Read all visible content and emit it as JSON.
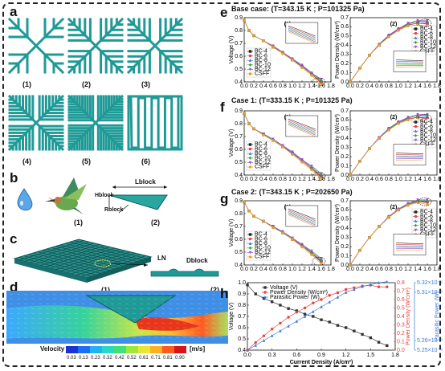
{
  "panels": {
    "a": {
      "label": "a",
      "sub": [
        "(1)",
        "(2)",
        "(3)",
        "(4)",
        "(5)",
        "(6)"
      ]
    },
    "b": {
      "label": "b",
      "sub": [
        "(1)",
        "(2)"
      ],
      "L_block": "Lblock",
      "H_block": "Hblock",
      "R_block": "Rblock"
    },
    "c": {
      "label": "c",
      "L_N": "LN",
      "D_block": "Dblock"
    },
    "d": {
      "label": "d",
      "sub": [
        "(1)",
        "(2)"
      ],
      "velocity_label": "Velocity",
      "unit": "[m/s]",
      "ticks": [
        "0.03",
        "0.13",
        "0.23",
        "0.32",
        "0.42",
        "0.52",
        "0.61",
        "0.71",
        "0.81",
        "0.90"
      ]
    },
    "e": {
      "label": "e",
      "title": "Base case: (T=343.15 K ; P=101325 Pa)"
    },
    "f": {
      "label": "f",
      "title": "Case 1: (T=333.15 K ; P=101325 Pa)"
    },
    "g": {
      "label": "g",
      "title": "Case 2: (T=343.15 K ; P=202650 Pa)"
    },
    "h": {
      "label": "h",
      "xlabel": "Current Density (A/cm²)"
    }
  },
  "colors": {
    "teal": "#1f9a97",
    "dark": "#111111"
  },
  "chart_data": [
    {
      "type": "line",
      "panel": "e1",
      "sub": "(1)",
      "ylabel": "Voltage (V)",
      "xlabel": "",
      "xlim": [
        0.0,
        1.8
      ],
      "ylim": [
        0.4,
        0.9
      ],
      "xticks": [
        "0.0",
        "0.2",
        "0.4",
        "0.6",
        "0.8",
        "1.0",
        "1.2",
        "1.4",
        "1.6",
        "1.8"
      ],
      "yticks": [
        "0.4",
        "0.5",
        "0.6",
        "0.7",
        "0.8",
        "0.9"
      ],
      "x": [
        0.0,
        0.1,
        0.2,
        0.4,
        0.6,
        0.8,
        1.0,
        1.2,
        1.4,
        1.6
      ],
      "series": [
        {
          "name": "BC-4",
          "values": [
            0.88,
            0.8,
            0.76,
            0.72,
            0.67,
            0.63,
            0.57,
            0.52,
            0.46,
            0.4
          ]
        },
        {
          "name": "BC-6",
          "values": [
            0.88,
            0.8,
            0.76,
            0.72,
            0.67,
            0.63,
            0.57,
            0.52,
            0.46,
            0.39
          ]
        },
        {
          "name": "BC-8",
          "values": [
            0.88,
            0.8,
            0.76,
            0.72,
            0.68,
            0.63,
            0.58,
            0.52,
            0.47,
            0.41
          ]
        },
        {
          "name": "BC-10",
          "values": [
            0.88,
            0.8,
            0.76,
            0.72,
            0.68,
            0.63,
            0.58,
            0.53,
            0.47,
            0.41
          ]
        },
        {
          "name": "BC-12",
          "values": [
            0.88,
            0.8,
            0.76,
            0.72,
            0.68,
            0.63,
            0.58,
            0.53,
            0.47,
            0.42
          ]
        },
        {
          "name": "CSFF",
          "values": [
            0.88,
            0.8,
            0.76,
            0.72,
            0.67,
            0.62,
            0.57,
            0.51,
            0.45,
            0.38
          ]
        }
      ]
    },
    {
      "type": "line",
      "panel": "e2",
      "sub": "(2)",
      "ylabel": "Power Density (W/cm²)",
      "xlim": [
        0.0,
        1.8
      ],
      "ylim": [
        0.0,
        0.7
      ],
      "xticks": [
        "0.0",
        "0.2",
        "0.4",
        "0.6",
        "0.8",
        "1.0",
        "1.2",
        "1.4",
        "1.6",
        "1.8"
      ],
      "yticks": [
        "0.0",
        "0.1",
        "0.2",
        "0.3",
        "0.4",
        "0.5",
        "0.6",
        "0.7"
      ],
      "x": [
        0.0,
        0.2,
        0.4,
        0.6,
        0.8,
        1.0,
        1.2,
        1.4,
        1.6
      ],
      "series": [
        {
          "name": "BC-4",
          "values": [
            0.0,
            0.15,
            0.29,
            0.4,
            0.5,
            0.57,
            0.62,
            0.64,
            0.64
          ]
        },
        {
          "name": "BC-6",
          "values": [
            0.0,
            0.15,
            0.29,
            0.4,
            0.5,
            0.57,
            0.62,
            0.64,
            0.63
          ]
        },
        {
          "name": "BC-8",
          "values": [
            0.0,
            0.15,
            0.29,
            0.41,
            0.5,
            0.58,
            0.63,
            0.66,
            0.66
          ]
        },
        {
          "name": "BC-10",
          "values": [
            0.0,
            0.15,
            0.29,
            0.41,
            0.51,
            0.58,
            0.63,
            0.66,
            0.66
          ]
        },
        {
          "name": "BC-12",
          "values": [
            0.0,
            0.15,
            0.29,
            0.41,
            0.51,
            0.58,
            0.64,
            0.67,
            0.67
          ]
        },
        {
          "name": "CSFF",
          "values": [
            0.0,
            0.15,
            0.29,
            0.4,
            0.49,
            0.56,
            0.61,
            0.62,
            0.61
          ]
        }
      ]
    },
    {
      "type": "line",
      "panel": "f1",
      "sub": "(1)",
      "ylabel": "Voltage (V)",
      "xlim": [
        0.0,
        1.8
      ],
      "ylim": [
        0.4,
        0.9
      ],
      "xticks": [
        "0.0",
        "0.2",
        "0.4",
        "0.6",
        "0.8",
        "1.0",
        "1.2",
        "1.4",
        "1.6",
        "1.8"
      ],
      "yticks": [
        "0.4",
        "0.5",
        "0.6",
        "0.7",
        "0.8",
        "0.9"
      ],
      "x": [
        0.0,
        0.1,
        0.2,
        0.4,
        0.6,
        0.8,
        1.0,
        1.2,
        1.4,
        1.6
      ],
      "series": [
        {
          "name": "BC-4",
          "values": [
            0.88,
            0.8,
            0.76,
            0.72,
            0.67,
            0.62,
            0.57,
            0.51,
            0.45,
            0.39
          ]
        },
        {
          "name": "BC-6",
          "values": [
            0.88,
            0.8,
            0.76,
            0.72,
            0.67,
            0.62,
            0.57,
            0.51,
            0.45,
            0.38
          ]
        },
        {
          "name": "BC-8",
          "values": [
            0.88,
            0.8,
            0.76,
            0.72,
            0.67,
            0.63,
            0.57,
            0.52,
            0.46,
            0.4
          ]
        },
        {
          "name": "BC-10",
          "values": [
            0.88,
            0.8,
            0.76,
            0.72,
            0.67,
            0.63,
            0.58,
            0.52,
            0.46,
            0.4
          ]
        },
        {
          "name": "BC-12",
          "values": [
            0.88,
            0.8,
            0.76,
            0.72,
            0.68,
            0.63,
            0.58,
            0.52,
            0.47,
            0.41
          ]
        },
        {
          "name": "CSFF",
          "values": [
            0.88,
            0.8,
            0.76,
            0.71,
            0.67,
            0.62,
            0.56,
            0.5,
            0.44,
            0.37
          ]
        }
      ]
    },
    {
      "type": "line",
      "panel": "f2",
      "sub": "(2)",
      "ylabel": "Power Density (W/cm²)",
      "xlim": [
        0.0,
        1.8
      ],
      "ylim": [
        0.0,
        0.7
      ],
      "xticks": [
        "0.0",
        "0.2",
        "0.4",
        "0.6",
        "0.8",
        "1.0",
        "1.2",
        "1.4",
        "1.6",
        "1.8"
      ],
      "yticks": [
        "0.0",
        "0.1",
        "0.2",
        "0.3",
        "0.4",
        "0.5",
        "0.6",
        "0.7"
      ],
      "x": [
        0.0,
        0.2,
        0.4,
        0.6,
        0.8,
        1.0,
        1.2,
        1.4,
        1.6
      ],
      "series": [
        {
          "name": "BC-4",
          "values": [
            0.0,
            0.15,
            0.29,
            0.4,
            0.5,
            0.57,
            0.61,
            0.63,
            0.62
          ]
        },
        {
          "name": "BC-6",
          "values": [
            0.0,
            0.15,
            0.29,
            0.4,
            0.5,
            0.57,
            0.61,
            0.63,
            0.61
          ]
        },
        {
          "name": "BC-8",
          "values": [
            0.0,
            0.15,
            0.29,
            0.4,
            0.5,
            0.57,
            0.62,
            0.65,
            0.64
          ]
        },
        {
          "name": "BC-10",
          "values": [
            0.0,
            0.15,
            0.29,
            0.4,
            0.5,
            0.58,
            0.62,
            0.65,
            0.65
          ]
        },
        {
          "name": "BC-12",
          "values": [
            0.0,
            0.15,
            0.29,
            0.41,
            0.51,
            0.58,
            0.63,
            0.66,
            0.66
          ]
        },
        {
          "name": "CSFF",
          "values": [
            0.0,
            0.15,
            0.29,
            0.4,
            0.49,
            0.56,
            0.6,
            0.61,
            0.59
          ]
        }
      ]
    },
    {
      "type": "line",
      "panel": "g1",
      "sub": "(1)",
      "ylabel": "Voltage (V)",
      "xlim": [
        0.0,
        1.8
      ],
      "ylim": [
        0.4,
        0.9
      ],
      "xticks": [
        "0.0",
        "0.2",
        "0.4",
        "0.6",
        "0.8",
        "1.0",
        "1.2",
        "1.4",
        "1.6",
        "1.8"
      ],
      "yticks": [
        "0.4",
        "0.5",
        "0.6",
        "0.7",
        "0.8",
        "0.9"
      ],
      "x": [
        0.0,
        0.1,
        0.2,
        0.4,
        0.6,
        0.8,
        1.0,
        1.2,
        1.4,
        1.6
      ],
      "series": [
        {
          "name": "BC-4",
          "values": [
            0.89,
            0.82,
            0.78,
            0.74,
            0.7,
            0.65,
            0.6,
            0.55,
            0.49,
            0.43
          ]
        },
        {
          "name": "BC-6",
          "values": [
            0.89,
            0.82,
            0.78,
            0.74,
            0.7,
            0.65,
            0.6,
            0.55,
            0.49,
            0.42
          ]
        },
        {
          "name": "BC-8",
          "values": [
            0.89,
            0.82,
            0.78,
            0.74,
            0.7,
            0.65,
            0.61,
            0.55,
            0.5,
            0.44
          ]
        },
        {
          "name": "BC-10",
          "values": [
            0.89,
            0.82,
            0.78,
            0.74,
            0.7,
            0.66,
            0.61,
            0.56,
            0.5,
            0.44
          ]
        },
        {
          "name": "BC-12",
          "values": [
            0.89,
            0.82,
            0.78,
            0.74,
            0.7,
            0.66,
            0.61,
            0.56,
            0.51,
            0.45
          ]
        },
        {
          "name": "CSFF",
          "values": [
            0.89,
            0.82,
            0.78,
            0.74,
            0.69,
            0.65,
            0.6,
            0.54,
            0.48,
            0.41
          ]
        }
      ]
    },
    {
      "type": "line",
      "panel": "g2",
      "sub": "(2)",
      "ylabel": "Power Density (W/cm²)",
      "xlim": [
        0.0,
        1.8
      ],
      "ylim": [
        0.0,
        0.7
      ],
      "xticks": [
        "0.0",
        "0.2",
        "0.4",
        "0.6",
        "0.8",
        "1.0",
        "1.2",
        "1.4",
        "1.6",
        "1.8"
      ],
      "yticks": [
        "0.0",
        "0.1",
        "0.2",
        "0.3",
        "0.4",
        "0.5",
        "0.6",
        "0.7"
      ],
      "x": [
        0.0,
        0.2,
        0.4,
        0.6,
        0.8,
        1.0,
        1.2,
        1.4,
        1.6
      ],
      "series": [
        {
          "name": "BC-4",
          "values": [
            0.0,
            0.16,
            0.3,
            0.42,
            0.52,
            0.6,
            0.66,
            0.69,
            0.69
          ]
        },
        {
          "name": "BC-6",
          "values": [
            0.0,
            0.16,
            0.3,
            0.42,
            0.52,
            0.6,
            0.66,
            0.69,
            0.68
          ]
        },
        {
          "name": "BC-8",
          "values": [
            0.0,
            0.16,
            0.3,
            0.42,
            0.52,
            0.61,
            0.66,
            0.7,
            0.7
          ]
        },
        {
          "name": "BC-10",
          "values": [
            0.0,
            0.16,
            0.3,
            0.42,
            0.52,
            0.61,
            0.67,
            0.7,
            0.7
          ]
        },
        {
          "name": "BC-12",
          "values": [
            0.0,
            0.16,
            0.3,
            0.42,
            0.53,
            0.61,
            0.67,
            0.71,
            0.71
          ]
        },
        {
          "name": "CSFF",
          "values": [
            0.0,
            0.16,
            0.3,
            0.42,
            0.52,
            0.6,
            0.65,
            0.68,
            0.66
          ]
        }
      ]
    },
    {
      "type": "line",
      "panel": "h",
      "xlabel": "Current Density (A/cm²)",
      "ylabel": "Voltage (V)",
      "ylabel2": "Power Density (W/cm²)",
      "ylabel3": "Parasitic Power (W)",
      "xlim": [
        0.0,
        1.8
      ],
      "xticks": [
        "0.0",
        "0.3",
        "0.6",
        "0.9",
        "1.2",
        "1.5",
        "1.8"
      ],
      "y_left": {
        "lim": [
          0.4,
          1.0
        ],
        "ticks": [
          "0.4",
          "0.5",
          "0.6",
          "0.7",
          "0.8",
          "0.9",
          "1.0"
        ]
      },
      "y_mid": {
        "lim": [
          0.0,
          0.8
        ],
        "ticks": [
          "0.0",
          "0.1",
          "0.2",
          "0.3",
          "0.4",
          "0.5",
          "0.6",
          "0.7",
          "0.8"
        ]
      },
      "y_right": {
        "lim": [
          5.25,
          5.32
        ],
        "ticks": [
          "5.25×10⁻⁵",
          "5.26×10⁻⁵",
          "5.31×10⁻⁵",
          "5.32×10⁻⁵"
        ]
      },
      "x": [
        0.0,
        0.1,
        0.2,
        0.3,
        0.4,
        0.5,
        0.6,
        0.7,
        0.8,
        0.9,
        1.0,
        1.1,
        1.2,
        1.3,
        1.4,
        1.5,
        1.6,
        1.7
      ],
      "series": [
        {
          "name": "Voltage (V)",
          "axis": "left",
          "color": "#333333",
          "values": [
            0.98,
            0.9,
            0.86,
            0.83,
            0.8,
            0.77,
            0.75,
            0.72,
            0.7,
            0.67,
            0.65,
            0.62,
            0.6,
            0.57,
            0.54,
            0.51,
            0.47,
            0.44
          ]
        },
        {
          "name": "Power Density (W/cm²)",
          "axis": "mid",
          "color": "#e8433f",
          "values": [
            0.0,
            0.09,
            0.17,
            0.25,
            0.32,
            0.39,
            0.45,
            0.5,
            0.56,
            0.6,
            0.65,
            0.68,
            0.72,
            0.74,
            0.76,
            0.77,
            0.75,
            0.75
          ]
        },
        {
          "name": "Parasitic Power (W)",
          "axis": "right",
          "color": "#3a78d6",
          "values": [
            5.25,
            5.255,
            5.26,
            5.265,
            5.27,
            5.275,
            5.28,
            5.285,
            5.29,
            5.295,
            5.3,
            5.305,
            5.31,
            5.313,
            5.316,
            5.318,
            5.32,
            5.321
          ]
        }
      ]
    }
  ]
}
